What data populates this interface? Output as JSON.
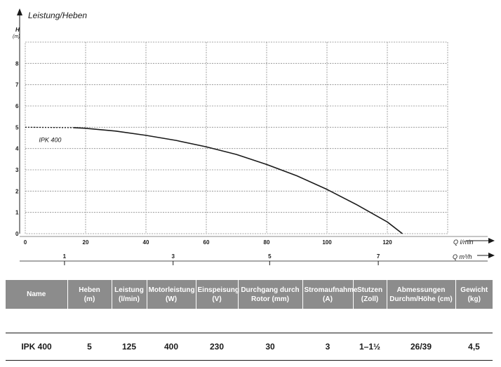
{
  "chart_data": {
    "type": "line",
    "title": "Leistung/Heben",
    "ylabel": "H",
    "yunit": "(m)",
    "xlabel": "Q l/min",
    "x2label": "Q m³/h",
    "xlim": [
      0,
      140
    ],
    "ylim": [
      0,
      9
    ],
    "x_ticks": [
      0,
      20,
      40,
      60,
      80,
      100,
      120
    ],
    "y_ticks": [
      0,
      1,
      2,
      3,
      4,
      5,
      6,
      7,
      8
    ],
    "x2_ticks": [
      "1",
      "3",
      "5",
      "7"
    ],
    "x2_tick_lpm": [
      13,
      49,
      81,
      117
    ],
    "grid": true,
    "series": [
      {
        "name": "IPK 400",
        "dashed_segment": {
          "x": [
            0,
            16
          ],
          "y": [
            5.0,
            4.98
          ]
        },
        "x": [
          16,
          20,
          30,
          40,
          50,
          60,
          70,
          80,
          90,
          100,
          110,
          120,
          125
        ],
        "y": [
          4.98,
          4.95,
          4.82,
          4.62,
          4.38,
          4.08,
          3.72,
          3.25,
          2.72,
          2.08,
          1.35,
          0.55,
          0.0
        ]
      }
    ]
  },
  "table": {
    "headers": [
      [
        "Name"
      ],
      [
        "Heben",
        "(m)"
      ],
      [
        "Leistung",
        "(l/min)"
      ],
      [
        "Motorleistung",
        "(W)"
      ],
      [
        "Einspeisung",
        "(V)"
      ],
      [
        "Durchgang durch",
        "Rotor (mm)"
      ],
      [
        "Stromaufnahme",
        "(A)"
      ],
      [
        "Stutzen",
        "(Zoll)"
      ],
      [
        "Abmessungen",
        "Durchm/Höhe (cm)"
      ],
      [
        "Gewicht",
        "(kg)"
      ]
    ],
    "rows": [
      [
        "IPK 400",
        "5",
        "125",
        "400",
        "230",
        "30",
        "3",
        "1–1½",
        "26/39",
        "4,5"
      ]
    ]
  }
}
